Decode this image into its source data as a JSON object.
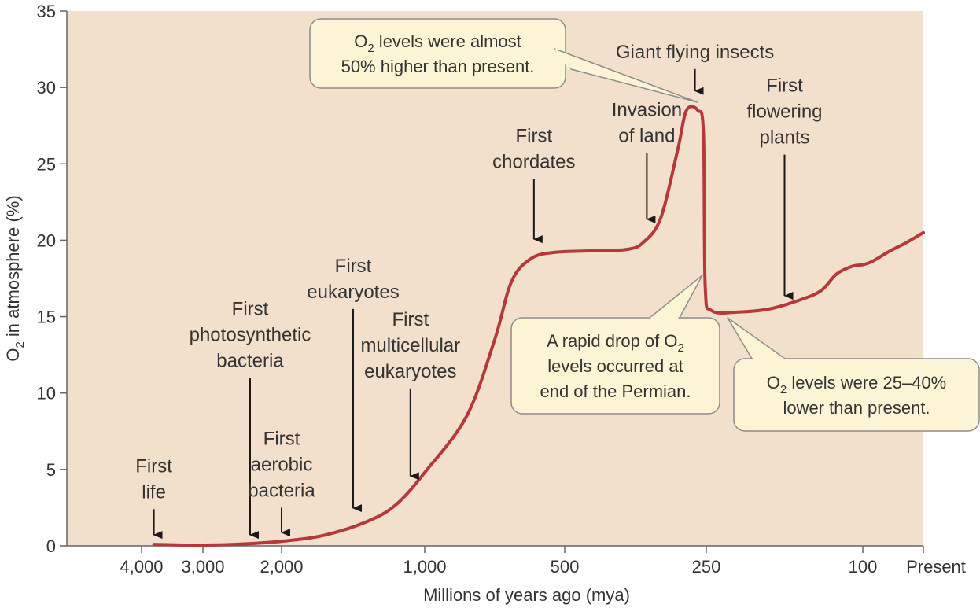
{
  "chart_data": {
    "type": "line",
    "title": "",
    "xlabel": "Millions of years ago (mya)",
    "ylabel": "O2 in atmosphere (%)",
    "ylim": [
      0,
      35
    ],
    "y_ticks": [
      "0",
      "5",
      "10",
      "15",
      "20",
      "25",
      "30",
      "35"
    ],
    "x_ticks": [
      {
        "mya": 4000,
        "label": "4,000"
      },
      {
        "mya": 3000,
        "label": "3,000"
      },
      {
        "mya": 2000,
        "label": "2,000"
      },
      {
        "mya": 1000,
        "label": "1,000"
      },
      {
        "mya": 500,
        "label": "500"
      },
      {
        "mya": 250,
        "label": "250"
      },
      {
        "mya": 100,
        "label": "100"
      },
      {
        "mya": 0,
        "label": "Present"
      }
    ],
    "grid": false,
    "background_color": "#f2dfcc",
    "line_color": "#b5383a",
    "callout_fill": "#fbf5d6",
    "series": [
      {
        "name": "",
        "points": [
          {
            "mya": 3800,
            "o2": 0.1
          },
          {
            "mya": 3200,
            "o2": 0.05
          },
          {
            "mya": 2600,
            "o2": 0.1
          },
          {
            "mya": 2000,
            "o2": 0.3
          },
          {
            "mya": 1700,
            "o2": 0.7
          },
          {
            "mya": 1400,
            "o2": 1.6
          },
          {
            "mya": 1200,
            "o2": 2.7
          },
          {
            "mya": 1000,
            "o2": 4.8
          },
          {
            "mya": 850,
            "o2": 8.5
          },
          {
            "mya": 750,
            "o2": 13.5
          },
          {
            "mya": 690,
            "o2": 17.3
          },
          {
            "mya": 620,
            "o2": 18.8
          },
          {
            "mya": 540,
            "o2": 19.2
          },
          {
            "mya": 460,
            "o2": 19.3
          },
          {
            "mya": 390,
            "o2": 19.4
          },
          {
            "mya": 360,
            "o2": 19.9
          },
          {
            "mya": 330,
            "o2": 21.5
          },
          {
            "mya": 300,
            "o2": 26.0
          },
          {
            "mya": 285,
            "o2": 28.5
          },
          {
            "mya": 265,
            "o2": 28.5
          },
          {
            "mya": 255,
            "o2": 27.0
          },
          {
            "mya": 252,
            "o2": 17.0
          },
          {
            "mya": 245,
            "o2": 15.4
          },
          {
            "mya": 220,
            "o2": 15.3
          },
          {
            "mya": 190,
            "o2": 15.5
          },
          {
            "mya": 160,
            "o2": 16.1
          },
          {
            "mya": 140,
            "o2": 16.7
          },
          {
            "mya": 125,
            "o2": 17.8
          },
          {
            "mya": 110,
            "o2": 18.3
          },
          {
            "mya": 100,
            "o2": 18.4
          },
          {
            "mya": 85,
            "o2": 18.6
          },
          {
            "mya": 55,
            "o2": 19.3
          },
          {
            "mya": 30,
            "o2": 19.8
          },
          {
            "mya": 0,
            "o2": 20.5
          }
        ]
      }
    ],
    "annotations": [
      {
        "lines": [
          "First",
          "life"
        ],
        "arrow": {
          "mya": 3800,
          "from_o2": 2.4,
          "to_o2": 0.15
        }
      },
      {
        "lines": [
          "First",
          "photosynthetic",
          "bacteria"
        ],
        "arrow": {
          "mya": 2400,
          "from_o2": 11.0,
          "to_o2": 0.15
        }
      },
      {
        "lines": [
          "First",
          "aerobic",
          "bacteria"
        ],
        "arrow": {
          "mya": 2000,
          "from_o2": 2.5,
          "to_o2": 0.3
        }
      },
      {
        "lines": [
          "First",
          "eukaryotes"
        ],
        "arrow": {
          "mya": 1500,
          "from_o2": 15.5,
          "to_o2": 1.9
        }
      },
      {
        "lines": [
          "First",
          "multicellular",
          "eukaryotes"
        ],
        "arrow": {
          "mya": 1100,
          "from_o2": 10.3,
          "to_o2": 4.0
        }
      },
      {
        "lines": [
          "First",
          "chordates"
        ],
        "arrow": {
          "mya": 610,
          "from_o2": 24.0,
          "to_o2": 19.5
        }
      },
      {
        "lines": [
          "Invasion",
          "of land"
        ],
        "arrow": {
          "mya": 355,
          "from_o2": 25.7,
          "to_o2": 20.8
        }
      },
      {
        "lines": [
          "Giant flying insects"
        ],
        "arrow": {
          "mya": 270,
          "from_o2": 31.2,
          "to_o2": 29.2
        }
      },
      {
        "lines": [
          "First",
          "flowering",
          "plants"
        ],
        "arrow": {
          "mya": 175,
          "from_o2": 25.6,
          "to_o2": 15.8
        }
      }
    ],
    "callouts": [
      {
        "text_lines": [
          [
            "O",
            "2",
            " levels were almost"
          ],
          [
            "50% higher than present."
          ]
        ]
      },
      {
        "text_lines": [
          [
            "A rapid drop of O",
            "2",
            ""
          ],
          [
            "levels occurred at"
          ],
          [
            "end of the Permian."
          ]
        ]
      },
      {
        "text_lines": [
          [
            "O",
            "2",
            " levels were 25–40%"
          ],
          [
            "lower than present."
          ]
        ]
      }
    ]
  }
}
